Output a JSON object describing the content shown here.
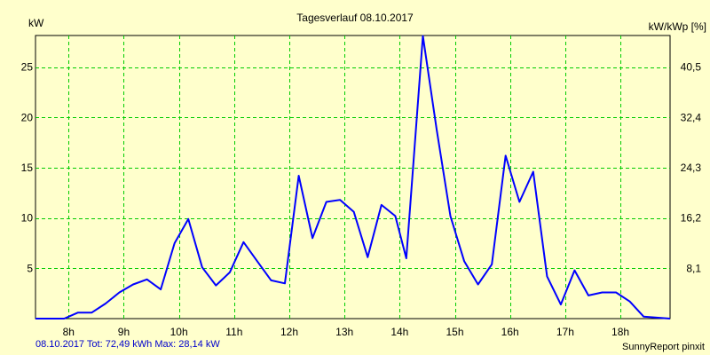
{
  "chart_data": {
    "type": "line",
    "title": "Tagesverlauf 08.10.2017",
    "ylabel": "kW",
    "ylabel_right": "kW/kWp [%]",
    "ylim": [
      0,
      28.14
    ],
    "yticks": [
      5,
      10,
      15,
      20,
      25
    ],
    "yticks_right": [
      "8,1",
      "16,2",
      "24,3",
      "32,4",
      "40,5"
    ],
    "xlim": [
      7.4,
      18.9
    ],
    "xticks": [
      {
        "v": 8,
        "label": "8h"
      },
      {
        "v": 9,
        "label": "9h"
      },
      {
        "v": 10,
        "label": "10h"
      },
      {
        "v": 11,
        "label": "11h"
      },
      {
        "v": 12,
        "label": "12h"
      },
      {
        "v": 13,
        "label": "13h"
      },
      {
        "v": 14,
        "label": "14h"
      },
      {
        "v": 15,
        "label": "15h"
      },
      {
        "v": 16,
        "label": "16h"
      },
      {
        "v": 17,
        "label": "17h"
      },
      {
        "v": 18,
        "label": "18h"
      }
    ],
    "grid": true,
    "series": [
      {
        "color": "#0000ff",
        "x": [
          7.4,
          7.92,
          8.17,
          8.42,
          8.67,
          8.92,
          9.17,
          9.42,
          9.67,
          9.92,
          10.17,
          10.42,
          10.67,
          10.92,
          11.17,
          11.42,
          11.67,
          11.92,
          12.17,
          12.42,
          12.67,
          12.92,
          13.17,
          13.42,
          13.67,
          13.92,
          14.12,
          14.42,
          14.67,
          14.92,
          15.17,
          15.42,
          15.67,
          15.92,
          16.17,
          16.42,
          16.67,
          16.92,
          17.17,
          17.42,
          17.67,
          17.92,
          18.17,
          18.42,
          18.9
        ],
        "y": [
          0,
          0,
          0.6,
          0.6,
          1.5,
          2.6,
          3.4,
          3.9,
          2.9,
          7.5,
          9.9,
          5.1,
          3.3,
          4.6,
          7.6,
          5.7,
          3.8,
          3.5,
          14.2,
          8.0,
          11.6,
          11.8,
          10.6,
          6.1,
          11.3,
          10.2,
          6.0,
          28.1,
          18.8,
          10.2,
          5.7,
          3.4,
          5.4,
          16.2,
          11.6,
          14.6,
          4.2,
          1.4,
          4.8,
          2.3,
          2.6,
          2.6,
          1.7,
          0.2,
          0
        ]
      }
    ]
  },
  "footer": {
    "summary": "08.10.2017 Tot: 72,49 kWh Max: 28,14 kW",
    "brand": "SunnyReport pinxit"
  }
}
